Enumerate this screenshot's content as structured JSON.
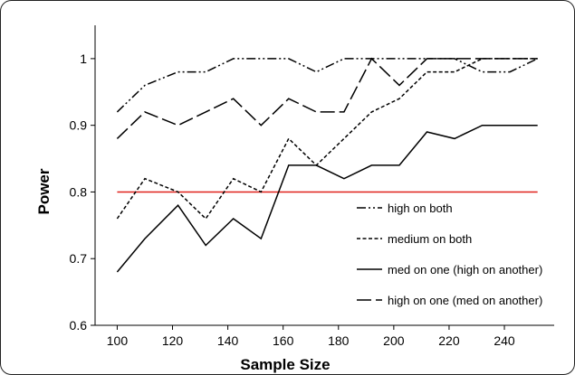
{
  "chart_data": {
    "type": "line",
    "title": "",
    "xlabel": "Sample Size",
    "ylabel": "Power",
    "xlim": [
      92,
      258
    ],
    "ylim": [
      0.6,
      1.05
    ],
    "x_ticks": [
      "100",
      "120",
      "140",
      "160",
      "180",
      "200",
      "220",
      "240"
    ],
    "y_ticks": [
      "0.6",
      "0.7",
      "0.8",
      "0.9",
      "1"
    ],
    "grid": false,
    "legend_position": "right-bottom",
    "reference_line": {
      "y": 0.8,
      "color": "#e0211b"
    },
    "x": [
      100,
      110,
      122,
      132,
      142,
      152,
      162,
      172,
      182,
      192,
      202,
      212,
      222,
      232,
      242,
      252
    ],
    "series": [
      {
        "name": "high on both",
        "style": "dash-dot-dot",
        "color": "#000000",
        "values": [
          0.92,
          0.96,
          0.98,
          0.98,
          1.0,
          1.0,
          1.0,
          0.98,
          1.0,
          1.0,
          1.0,
          1.0,
          1.0,
          0.98,
          0.98,
          1.0
        ]
      },
      {
        "name": "medium on both",
        "style": "short-dash",
        "color": "#000000",
        "values": [
          0.76,
          0.82,
          0.8,
          0.76,
          0.82,
          0.8,
          0.88,
          0.84,
          0.88,
          0.92,
          0.94,
          0.98,
          0.98,
          1.0,
          1.0,
          1.0
        ]
      },
      {
        "name": "med on one (high on another)",
        "style": "solid",
        "color": "#000000",
        "values": [
          0.68,
          0.73,
          0.78,
          0.72,
          0.76,
          0.73,
          0.84,
          0.84,
          0.82,
          0.84,
          0.84,
          0.89,
          0.88,
          0.9,
          0.9,
          0.9
        ]
      },
      {
        "name": "high on one (med on another)",
        "style": "long-dash",
        "color": "#000000",
        "values": [
          0.88,
          0.92,
          0.9,
          0.92,
          0.94,
          0.9,
          0.94,
          0.92,
          0.92,
          1.0,
          0.96,
          1.0,
          1.0,
          1.0,
          1.0,
          1.0
        ]
      }
    ]
  }
}
